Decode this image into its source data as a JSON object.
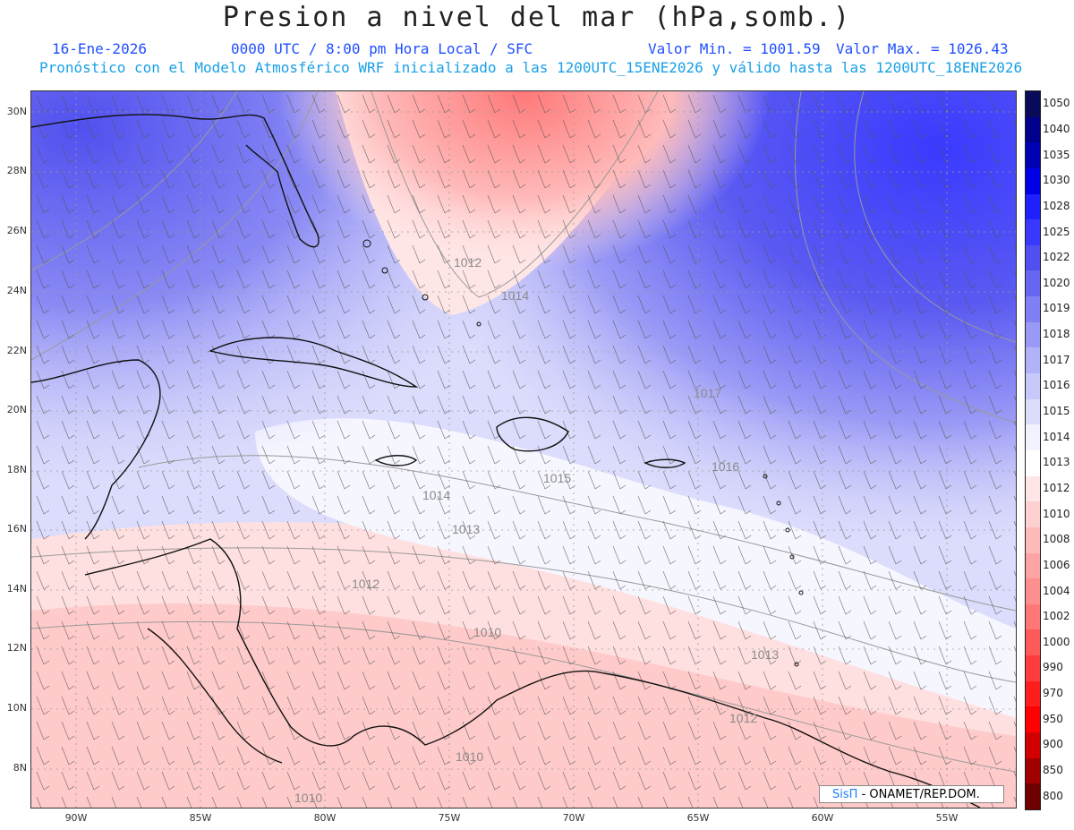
{
  "header": {
    "title": "Presion a nivel del mar (hPa,somb.)",
    "date": "16-Ene-2026",
    "time": "0000 UTC / 8:00 pm Hora Local / SFC",
    "min_label": "Valor Min. = 1001.59",
    "max_label": "Valor Max. = 1026.43",
    "forecast_info": "Pronóstico con el Modelo Atmosférico WRF inicializado a las 1200UTC_15ENE2026 y válido hasta las  1200UTC_18ENE2026"
  },
  "axes": {
    "lat_labels": [
      "30N",
      "28N",
      "26N",
      "24N",
      "22N",
      "20N",
      "18N",
      "16N",
      "14N",
      "12N",
      "10N",
      "8N"
    ],
    "lon_labels": [
      "90W",
      "85W",
      "80W",
      "75W",
      "70W",
      "65W",
      "60W",
      "55W"
    ]
  },
  "contour_labels": [
    "1012",
    "1014",
    "1017",
    "1015",
    "1016",
    "1014",
    "1013",
    "1012",
    "1010",
    "1013",
    "1012",
    "1010",
    "1010"
  ],
  "colorbar": {
    "levels": [
      "1050",
      "1040",
      "1035",
      "1030",
      "1028",
      "1025",
      "1022",
      "1020",
      "1019",
      "1018",
      "1017",
      "1016",
      "1015",
      "1014",
      "1013",
      "1012",
      "1010",
      "1008",
      "1006",
      "1004",
      "1002",
      "1000",
      "990",
      "970",
      "950",
      "900",
      "850",
      "800"
    ],
    "colors": [
      "#0a0a5a",
      "#00008b",
      "#0000b4",
      "#0000e6",
      "#2020ff",
      "#3838ff",
      "#5050f0",
      "#6666f0",
      "#8080f4",
      "#9a9af6",
      "#b2b2f8",
      "#c8c8fa",
      "#dcdcfc",
      "#f2f2fe",
      "#ffffff",
      "#ffe6e6",
      "#ffd0d0",
      "#ffbaba",
      "#ffa4a4",
      "#ff8e8e",
      "#ff7878",
      "#ff5a5a",
      "#ff3c3c",
      "#ff1e1e",
      "#ff0000",
      "#d20000",
      "#a00000",
      "#6e0000"
    ]
  },
  "credit": {
    "brand": "SisΠ",
    "text": "- ONAMET/REP.DOM."
  }
}
